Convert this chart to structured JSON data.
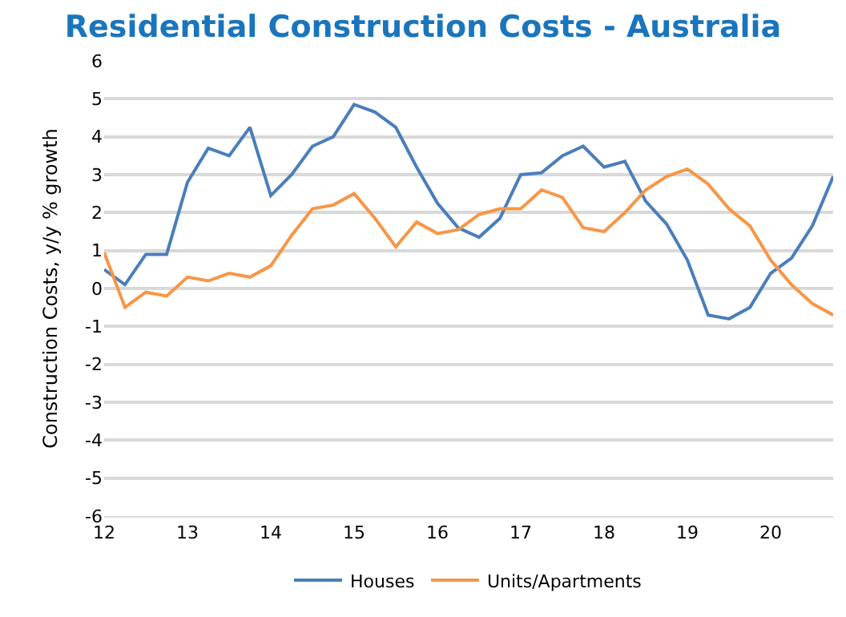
{
  "chart_data": {
    "type": "line",
    "title": "Residential Construction Costs - Australia",
    "ylabel": "Construction Costs, y/y % growth",
    "x": [
      12,
      12.25,
      12.5,
      12.75,
      13,
      13.25,
      13.5,
      13.75,
      14,
      14.25,
      14.5,
      14.75,
      15,
      15.25,
      15.5,
      15.75,
      16,
      16.25,
      16.5,
      16.75,
      17,
      17.25,
      17.5,
      17.75,
      18,
      18.25,
      18.5,
      18.75,
      19,
      19.25,
      19.5,
      19.75,
      20,
      20.25,
      20.5,
      20.75
    ],
    "series": [
      {
        "name": "Houses",
        "color": "#4a7ebb",
        "values": [
          0.5,
          0.1,
          0.9,
          0.9,
          2.8,
          3.7,
          3.5,
          4.25,
          2.45,
          3.0,
          3.75,
          4.0,
          4.85,
          4.65,
          4.25,
          3.2,
          2.25,
          1.6,
          1.35,
          1.85,
          3.0,
          3.05,
          3.5,
          3.75,
          3.2,
          3.35,
          2.3,
          1.7,
          0.75,
          -0.7,
          -0.8,
          -0.5,
          0.4,
          0.8,
          1.65,
          2.95
        ]
      },
      {
        "name": "Units/Apartments",
        "color": "#f79646",
        "values": [
          0.95,
          -0.5,
          -0.1,
          -0.2,
          0.3,
          0.2,
          0.4,
          0.3,
          0.6,
          1.4,
          2.1,
          2.2,
          2.5,
          1.85,
          1.1,
          1.75,
          1.45,
          1.55,
          1.95,
          2.1,
          2.1,
          2.6,
          2.4,
          1.6,
          1.5,
          2.0,
          2.6,
          2.95,
          3.15,
          2.75,
          2.1,
          1.65,
          0.75,
          0.1,
          -0.4,
          -0.7
        ]
      }
    ],
    "xlim": [
      12,
      20.75
    ],
    "xticks": [
      12,
      13,
      14,
      15,
      16,
      17,
      18,
      19,
      20
    ],
    "ylim": [
      -6,
      6
    ],
    "yticks": [
      -6,
      -5,
      -4,
      -3,
      -2,
      -1,
      0,
      1,
      2,
      3,
      4,
      5,
      6
    ],
    "grid": "y",
    "legend": "bottom",
    "marker": "none",
    "line_style": "solid"
  }
}
